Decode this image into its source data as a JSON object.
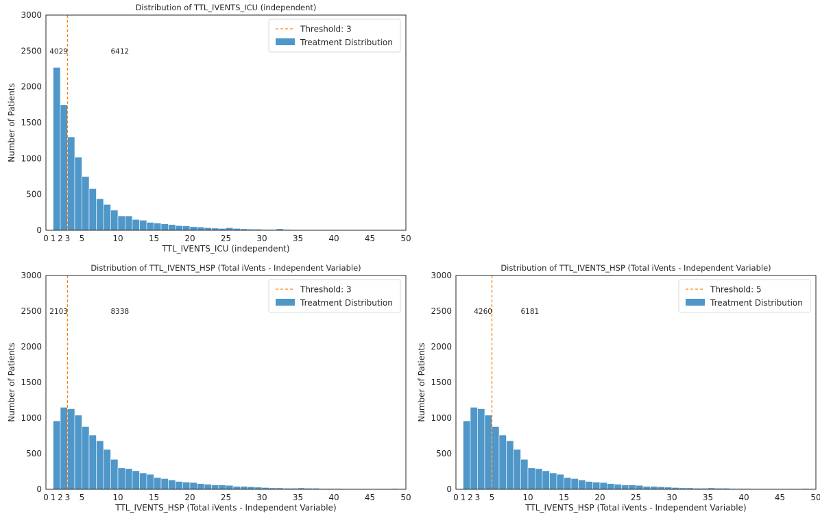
{
  "colors": {
    "bar": "#4f97c9",
    "threshold": "#ff7f0e",
    "axis": "#262626",
    "background": "#ffffff"
  },
  "chart_data": [
    {
      "type": "bar",
      "title": "Distribution of TTL_IVENTS_ICU (independent)",
      "xlabel": "TTL_IVENTS_ICU (independent)",
      "ylabel": "Number of Patients",
      "xlim": [
        0,
        50
      ],
      "ylim": [
        0,
        3000
      ],
      "xticks": [
        "0",
        "1",
        "2",
        "3",
        "5",
        "10",
        "15",
        "20",
        "25",
        "30",
        "35",
        "40",
        "45",
        "50"
      ],
      "xtick_values": [
        0,
        1,
        2,
        3,
        5,
        10,
        15,
        20,
        25,
        30,
        35,
        40,
        45,
        50
      ],
      "yticks": [
        0,
        500,
        1000,
        1500,
        2000,
        2500,
        3000
      ],
      "threshold": {
        "value": 3,
        "label": "Threshold: 3"
      },
      "legend": {
        "position": "top-right",
        "entries": [
          "Threshold: 3",
          "Treatment Distribution"
        ]
      },
      "annotations": [
        {
          "text": "4029",
          "x": 0.5,
          "y": 2500
        },
        {
          "text": "6412",
          "x": 9,
          "y": 2500
        }
      ],
      "grid": false,
      "series": [
        {
          "name": "Treatment Distribution",
          "bin_start": 1,
          "bin_width": 1,
          "values": [
            2270,
            1750,
            1300,
            1020,
            750,
            580,
            440,
            360,
            280,
            200,
            200,
            150,
            140,
            110,
            100,
            90,
            80,
            65,
            60,
            50,
            45,
            35,
            30,
            25,
            35,
            25,
            20,
            15,
            15,
            10,
            10,
            20,
            10,
            8,
            8,
            6,
            6,
            5,
            5,
            4,
            4,
            3,
            3,
            2,
            2,
            2,
            2,
            1
          ]
        }
      ]
    },
    {
      "type": "bar",
      "title": "Distribution of TTL_IVENTS_HSP (Total iVents - Independent Variable)",
      "xlabel": "TTL_IVENTS_HSP (Total iVents - Independent Variable)",
      "ylabel": "Number of Patients",
      "xlim": [
        0,
        50
      ],
      "ylim": [
        0,
        3000
      ],
      "xticks": [
        "0",
        "1",
        "2",
        "3",
        "5",
        "10",
        "15",
        "20",
        "25",
        "30",
        "35",
        "40",
        "45",
        "50"
      ],
      "xtick_values": [
        0,
        1,
        2,
        3,
        5,
        10,
        15,
        20,
        25,
        30,
        35,
        40,
        45,
        50
      ],
      "yticks": [
        0,
        500,
        1000,
        1500,
        2000,
        2500,
        3000
      ],
      "threshold": {
        "value": 3,
        "label": "Threshold: 3"
      },
      "legend": {
        "position": "top-right",
        "entries": [
          "Threshold: 3",
          "Treatment Distribution"
        ]
      },
      "annotations": [
        {
          "text": "2103",
          "x": 0.5,
          "y": 2500
        },
        {
          "text": "8338",
          "x": 9,
          "y": 2500
        }
      ],
      "grid": false,
      "series": [
        {
          "name": "Treatment Distribution",
          "bin_start": 1,
          "bin_width": 1,
          "values": [
            960,
            1150,
            1130,
            1040,
            880,
            760,
            680,
            560,
            420,
            300,
            290,
            260,
            230,
            210,
            165,
            150,
            130,
            110,
            100,
            95,
            80,
            70,
            60,
            60,
            55,
            40,
            40,
            35,
            30,
            25,
            20,
            20,
            15,
            15,
            20,
            15,
            15,
            10,
            10,
            10,
            8,
            8,
            6,
            6,
            5,
            5,
            4,
            10
          ]
        }
      ]
    },
    {
      "type": "bar",
      "title": "Distribution of TTL_IVENTS_HSP (Total iVents - Independent Variable)",
      "xlabel": "TTL_IVENTS_HSP (Total iVents - Independent Variable)",
      "ylabel": "Number of Patients",
      "xlim": [
        0,
        50
      ],
      "ylim": [
        0,
        3000
      ],
      "xticks": [
        "0",
        "1",
        "2",
        "3",
        "5",
        "10",
        "15",
        "20",
        "25",
        "30",
        "35",
        "40",
        "45",
        "50"
      ],
      "xtick_values": [
        0,
        1,
        2,
        3,
        5,
        10,
        15,
        20,
        25,
        30,
        35,
        40,
        45,
        50
      ],
      "yticks": [
        0,
        500,
        1000,
        1500,
        2000,
        2500,
        3000
      ],
      "threshold": {
        "value": 5,
        "label": "Threshold: 5"
      },
      "legend": {
        "position": "top-right",
        "entries": [
          "Threshold: 5",
          "Treatment Distribution"
        ]
      },
      "annotations": [
        {
          "text": "4260",
          "x": 2.5,
          "y": 2500
        },
        {
          "text": "6181",
          "x": 9,
          "y": 2500
        }
      ],
      "grid": false,
      "series": [
        {
          "name": "Treatment Distribution",
          "bin_start": 1,
          "bin_width": 1,
          "values": [
            960,
            1150,
            1130,
            1040,
            880,
            760,
            680,
            560,
            420,
            300,
            290,
            260,
            230,
            210,
            165,
            150,
            130,
            110,
            100,
            95,
            80,
            70,
            60,
            60,
            55,
            40,
            40,
            35,
            30,
            25,
            20,
            20,
            15,
            15,
            20,
            15,
            15,
            10,
            10,
            10,
            8,
            8,
            6,
            6,
            5,
            5,
            4,
            10
          ]
        }
      ]
    }
  ]
}
